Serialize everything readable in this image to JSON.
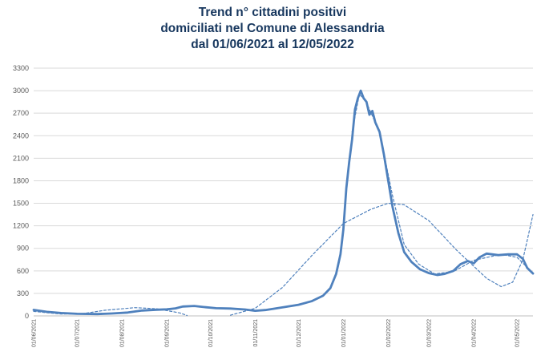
{
  "chart_data": {
    "type": "line",
    "title_lines": [
      "Trend n° cittadini positivi",
      "domiciliati nel Comune di Alessandria",
      "dal 01/06/2021 al 12/05/2022"
    ],
    "xlabel": "",
    "ylabel": "",
    "x_range": [
      "2021-06-01",
      "2022-05-12"
    ],
    "ylim": [
      0,
      3300
    ],
    "y_ticks": [
      0,
      300,
      600,
      900,
      1200,
      1500,
      1800,
      2100,
      2400,
      2700,
      3000,
      3300
    ],
    "x_ticks": [
      {
        "label": "01/06/2021",
        "date": "2021-06-01"
      },
      {
        "label": "01/07/2021",
        "date": "2021-07-01"
      },
      {
        "label": "01/08/2021",
        "date": "2021-08-01"
      },
      {
        "label": "01/09/2021",
        "date": "2021-09-01"
      },
      {
        "label": "01/10/2021",
        "date": "2021-10-01"
      },
      {
        "label": "01/11/2021",
        "date": "2021-11-01"
      },
      {
        "label": "01/12/2021",
        "date": "2021-12-01"
      },
      {
        "label": "01/01/2022",
        "date": "2022-01-01"
      },
      {
        "label": "01/02/2022",
        "date": "2022-02-01"
      },
      {
        "label": "01/03/2022",
        "date": "2022-03-01"
      },
      {
        "label": "01/04/2022",
        "date": "2022-04-01"
      },
      {
        "label": "01/05/2022",
        "date": "2022-05-01"
      }
    ],
    "grid": "horizontal",
    "legend": "none",
    "series": [
      {
        "style": "solid-thick",
        "color": "#4f81bd",
        "points": [
          [
            "2021-06-01",
            80
          ],
          [
            "2021-06-10",
            55
          ],
          [
            "2021-06-20",
            38
          ],
          [
            "2021-07-01",
            28
          ],
          [
            "2021-07-15",
            25
          ],
          [
            "2021-07-25",
            32
          ],
          [
            "2021-08-05",
            45
          ],
          [
            "2021-08-15",
            72
          ],
          [
            "2021-08-25",
            82
          ],
          [
            "2021-09-01",
            88
          ],
          [
            "2021-09-07",
            100
          ],
          [
            "2021-09-12",
            125
          ],
          [
            "2021-09-20",
            132
          ],
          [
            "2021-09-28",
            115
          ],
          [
            "2021-10-05",
            102
          ],
          [
            "2021-10-15",
            98
          ],
          [
            "2021-10-25",
            85
          ],
          [
            "2021-11-01",
            68
          ],
          [
            "2021-11-08",
            78
          ],
          [
            "2021-11-15",
            98
          ],
          [
            "2021-11-22",
            120
          ],
          [
            "2021-12-01",
            148
          ],
          [
            "2021-12-10",
            195
          ],
          [
            "2021-12-18",
            270
          ],
          [
            "2021-12-23",
            370
          ],
          [
            "2021-12-27",
            560
          ],
          [
            "2021-12-30",
            820
          ],
          [
            "2022-01-01",
            1150
          ],
          [
            "2022-01-03",
            1700
          ],
          [
            "2022-01-05",
            2050
          ],
          [
            "2022-01-07",
            2350
          ],
          [
            "2022-01-09",
            2750
          ],
          [
            "2022-01-11",
            2900
          ],
          [
            "2022-01-13",
            3000
          ],
          [
            "2022-01-15",
            2900
          ],
          [
            "2022-01-17",
            2850
          ],
          [
            "2022-01-19",
            2680
          ],
          [
            "2022-01-21",
            2730
          ],
          [
            "2022-01-23",
            2580
          ],
          [
            "2022-01-26",
            2450
          ],
          [
            "2022-01-29",
            2150
          ],
          [
            "2022-02-01",
            1800
          ],
          [
            "2022-02-04",
            1450
          ],
          [
            "2022-02-08",
            1100
          ],
          [
            "2022-02-12",
            850
          ],
          [
            "2022-02-17",
            720
          ],
          [
            "2022-02-23",
            620
          ],
          [
            "2022-03-01",
            570
          ],
          [
            "2022-03-07",
            545
          ],
          [
            "2022-03-12",
            560
          ],
          [
            "2022-03-18",
            600
          ],
          [
            "2022-03-23",
            690
          ],
          [
            "2022-03-28",
            730
          ],
          [
            "2022-04-01",
            700
          ],
          [
            "2022-04-05",
            780
          ],
          [
            "2022-04-10",
            830
          ],
          [
            "2022-04-18",
            810
          ],
          [
            "2022-04-25",
            820
          ],
          [
            "2022-05-01",
            820
          ],
          [
            "2022-05-05",
            760
          ],
          [
            "2022-05-08",
            640
          ],
          [
            "2022-05-12",
            565
          ]
        ]
      },
      {
        "style": "dashed",
        "color": "#4f81bd",
        "points": [
          [
            "2021-06-01",
            60
          ],
          [
            "2021-06-20",
            25
          ],
          [
            "2021-07-05",
            30
          ],
          [
            "2021-07-20",
            75
          ],
          [
            "2021-08-10",
            110
          ],
          [
            "2021-08-25",
            95
          ],
          [
            "2021-09-10",
            40
          ],
          [
            "2021-09-15",
            5
          ]
        ]
      },
      {
        "style": "dashed",
        "color": "#4f81bd",
        "points": [
          [
            "2021-10-15",
            10
          ],
          [
            "2021-11-01",
            100
          ],
          [
            "2021-11-20",
            380
          ],
          [
            "2021-12-10",
            800
          ],
          [
            "2022-01-01",
            1230
          ],
          [
            "2022-01-20",
            1420
          ],
          [
            "2022-02-01",
            1500
          ],
          [
            "2022-02-12",
            1480
          ],
          [
            "2022-03-01",
            1270
          ],
          [
            "2022-03-20",
            880
          ],
          [
            "2022-04-10",
            500
          ],
          [
            "2022-04-20",
            390
          ],
          [
            "2022-04-28",
            450
          ],
          [
            "2022-05-05",
            750
          ],
          [
            "2022-05-12",
            1350
          ]
        ]
      },
      {
        "style": "dashed",
        "color": "#4f81bd",
        "points": [
          [
            "2022-01-07",
            2450
          ],
          [
            "2022-01-12",
            2950
          ],
          [
            "2022-01-16",
            2880
          ],
          [
            "2022-01-26",
            2450
          ],
          [
            "2022-02-04",
            1600
          ],
          [
            "2022-02-12",
            950
          ],
          [
            "2022-02-22",
            690
          ],
          [
            "2022-03-05",
            560
          ],
          [
            "2022-03-18",
            590
          ],
          [
            "2022-04-01",
            740
          ],
          [
            "2022-04-20",
            820
          ],
          [
            "2022-05-01",
            780
          ],
          [
            "2022-05-12",
            570
          ]
        ]
      }
    ]
  }
}
